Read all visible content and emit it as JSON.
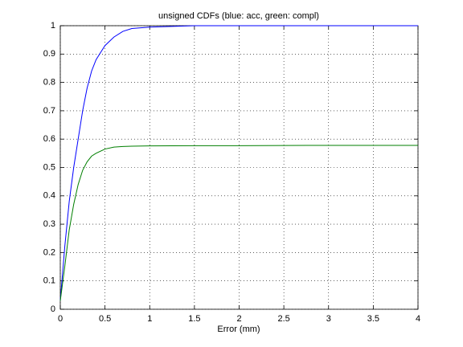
{
  "chart_data": {
    "type": "line",
    "title": "unsigned CDFs (blue: acc, green: compl)",
    "xlabel": "Error (mm)",
    "x": [
      0,
      0.05,
      0.1,
      0.15,
      0.2,
      0.25,
      0.3,
      0.35,
      0.4,
      0.5,
      0.6,
      0.7,
      0.8,
      1,
      1.5,
      2,
      3,
      4
    ],
    "series": [
      {
        "color": "#0000ff",
        "values": [
          0.03,
          0.22,
          0.38,
          0.5,
          0.6,
          0.7,
          0.78,
          0.84,
          0.88,
          0.93,
          0.96,
          0.98,
          0.99,
          0.995,
          1,
          1,
          1,
          1
        ]
      },
      {
        "color": "#007f00",
        "values": [
          0.03,
          0.15,
          0.28,
          0.37,
          0.44,
          0.49,
          0.52,
          0.54,
          0.55,
          0.565,
          0.572,
          0.574,
          0.575,
          0.576,
          0.577,
          0.577,
          0.578,
          0.578
        ]
      }
    ],
    "xlim": [
      0,
      4
    ],
    "xticks": [
      0,
      0.5,
      1,
      1.5,
      2,
      2.5,
      3,
      3.5,
      4
    ],
    "ylim": [
      0,
      1
    ],
    "yticks": [
      0,
      0.1,
      0.2,
      0.3,
      0.4,
      0.5,
      0.6,
      0.7,
      0.8,
      0.9,
      1
    ],
    "grid": true
  }
}
